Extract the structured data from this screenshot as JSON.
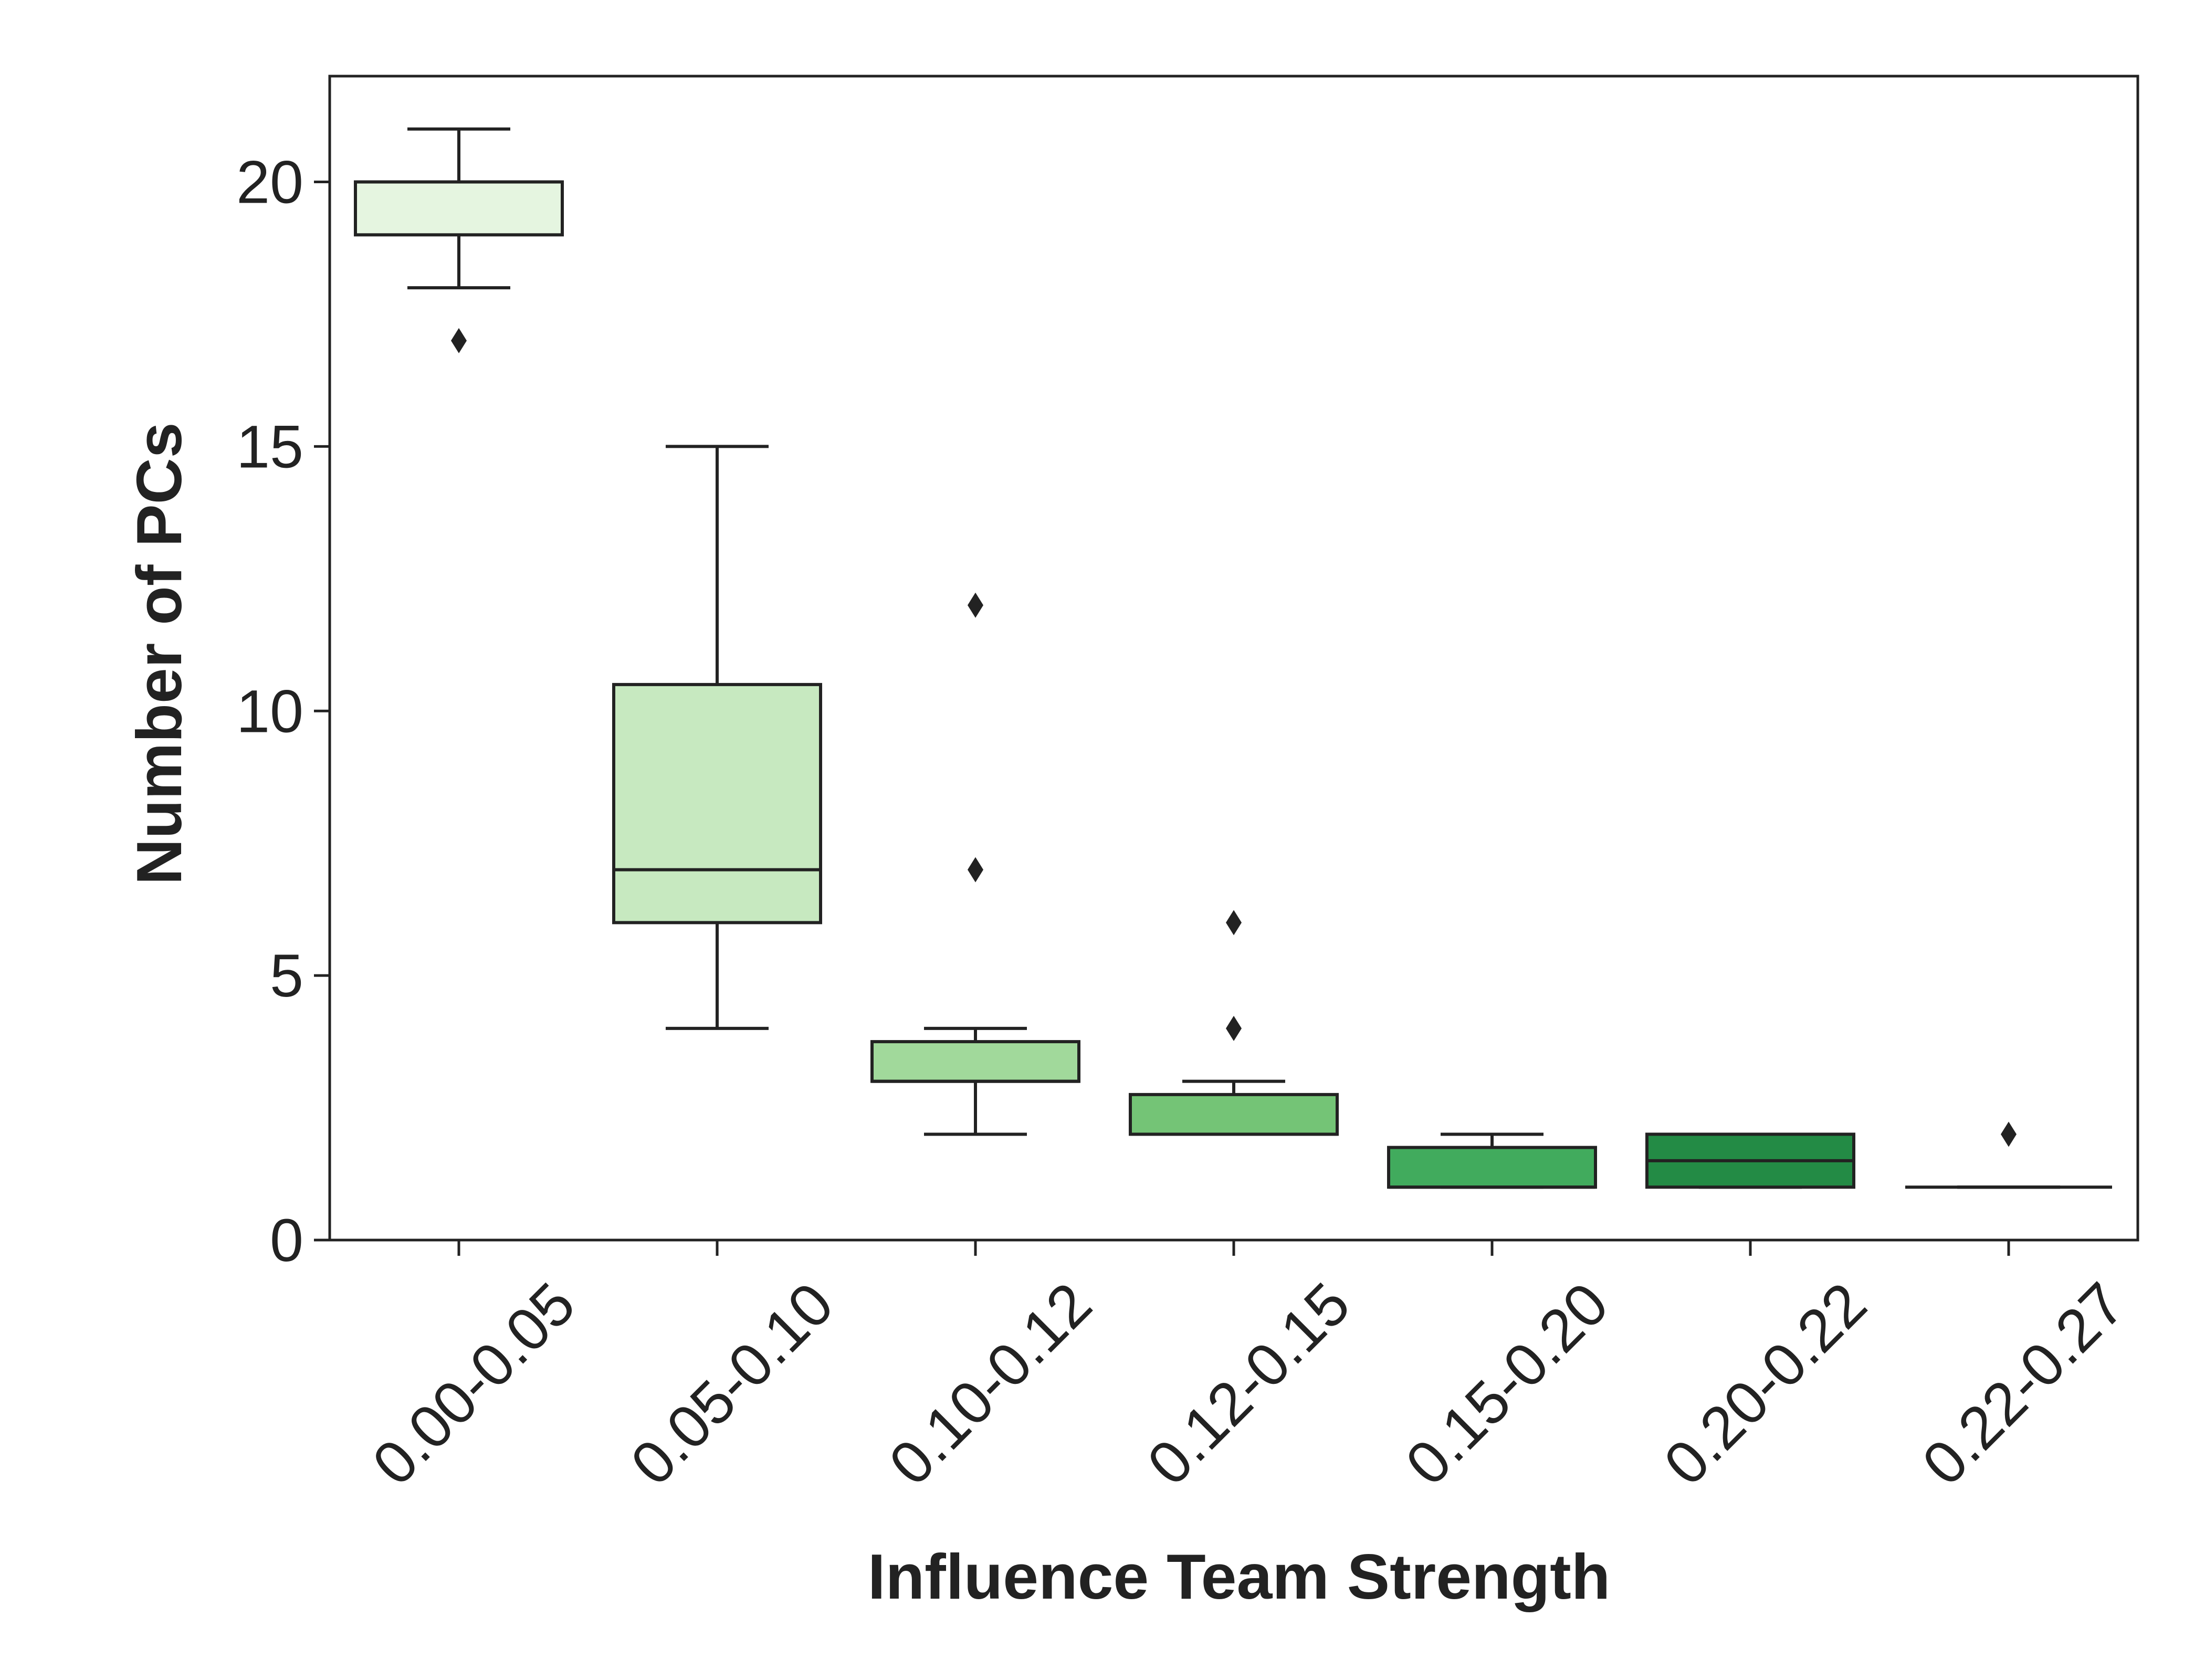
{
  "chart_data": {
    "type": "box",
    "title": "",
    "xlabel": "Influence Team Strength",
    "ylabel": "Number of PCs",
    "ylim": [
      0,
      22
    ],
    "yticks": [
      0,
      5,
      10,
      15,
      20
    ],
    "grid": false,
    "legend": "none",
    "categories": [
      "0.00-0.05",
      "0.05-0.10",
      "0.10-0.12",
      "0.12-0.15",
      "0.15-0.20",
      "0.20-0.22",
      "0.22-0.27"
    ],
    "boxes": [
      {
        "category": "0.00-0.05",
        "whisker_low": 18,
        "q1": 19,
        "median": 20,
        "q3": 20,
        "whisker_high": 21,
        "outliers": [
          17
        ],
        "color": "#e5f5e0"
      },
      {
        "category": "0.05-0.10",
        "whisker_low": 4,
        "q1": 6,
        "median": 7,
        "q3": 10.5,
        "whisker_high": 15,
        "outliers": [],
        "color": "#c7e9c0"
      },
      {
        "category": "0.10-0.12",
        "whisker_low": 2,
        "q1": 3,
        "median": 3,
        "q3": 3.75,
        "whisker_high": 4,
        "outliers": [
          7,
          12
        ],
        "color": "#a1d99b"
      },
      {
        "category": "0.12-0.15",
        "whisker_low": 2,
        "q1": 2,
        "median": 2,
        "q3": 2.75,
        "whisker_high": 3,
        "outliers": [
          4,
          6
        ],
        "color": "#74c476"
      },
      {
        "category": "0.15-0.20",
        "whisker_low": 1,
        "q1": 1,
        "median": 1,
        "q3": 1.75,
        "whisker_high": 2,
        "outliers": [],
        "color": "#41ab5d"
      },
      {
        "category": "0.20-0.22",
        "whisker_low": 1,
        "q1": 1,
        "median": 1.5,
        "q3": 2,
        "whisker_high": 2,
        "outliers": [],
        "color": "#238b45"
      },
      {
        "category": "0.22-0.27",
        "whisker_low": 1,
        "q1": 1,
        "median": 1,
        "q3": 1,
        "whisker_high": 1,
        "outliers": [
          2
        ],
        "color": "#006d2c"
      }
    ],
    "colors": {
      "axis": "#222222",
      "box_edge": "#222222",
      "outlier": "#222222"
    }
  }
}
